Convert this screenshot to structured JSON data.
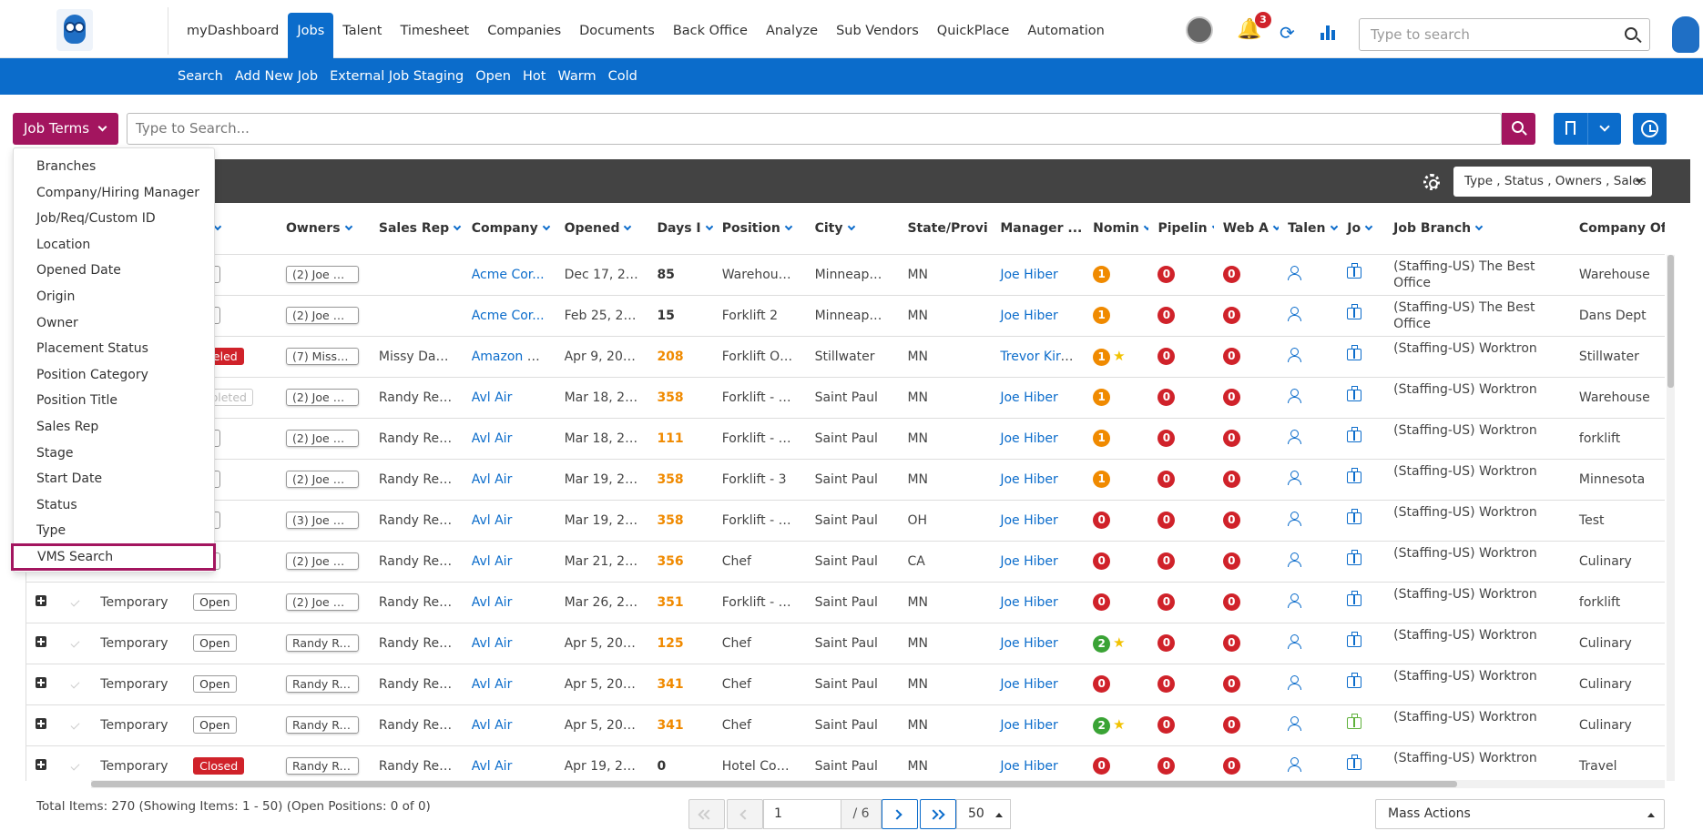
{
  "nav": {
    "items": [
      "myDashboard",
      "Jobs",
      "Talent",
      "Timesheet",
      "Companies",
      "Documents",
      "Back Office",
      "Analyze",
      "Sub Vendors",
      "QuickPlace",
      "Automation"
    ],
    "active_index": 1,
    "notifications_count": "3",
    "search_placeholder": "Type to search"
  },
  "subnav": {
    "items": [
      "Search",
      "Add New Job",
      "External Job Staging",
      "Open",
      "Hot",
      "Warm",
      "Cold"
    ]
  },
  "searchbar": {
    "terms_label": "Job Terms",
    "placeholder": "Type to Search..."
  },
  "dropdown": {
    "items": [
      "Branches",
      "Company/Hiring Manager",
      "Job/Req/Custom ID",
      "Location",
      "Opened Date",
      "Origin",
      "Owner",
      "Placement Status",
      "Position Category",
      "Position Title",
      "Sales Rep",
      "Stage",
      "Start Date",
      "Status",
      "Type"
    ],
    "highlighted": "VMS Search"
  },
  "toolbar": {
    "filter_label": "Type , Status , Owners , Sales"
  },
  "table": {
    "headers": [
      "",
      "",
      "",
      "us",
      "Owners",
      "Sales Rep",
      "Company",
      "Opened",
      "Days I",
      "Position",
      "City",
      "State/Provi",
      "Manager ...",
      "Nomin",
      "Pipelin",
      "Web A",
      "Talen",
      "Jo",
      "Job Branch",
      "Company Office"
    ],
    "rows": [
      {
        "type": "",
        "status": "en",
        "status_style": "",
        "owner": "(2) Joe Hi...",
        "sales": "",
        "company": "Acme Cor...",
        "opened": "Dec 17, 2024",
        "days": "85",
        "days_style": "",
        "position": "Warehous...",
        "city": "Minneapolis",
        "state": "MN",
        "manager": "Joe Hiber",
        "nom": "1",
        "nom_color": "orange",
        "nom_star": false,
        "pipe": "0",
        "web": "0",
        "job_icon": "blue",
        "branch": "(Staffing-US) The Best Office",
        "office": "Warehouse"
      },
      {
        "type": "",
        "status": "en",
        "status_style": "",
        "owner": "(2) Joe Hi...",
        "sales": "",
        "company": "Acme Cor...",
        "opened": "Feb 25, 2025",
        "days": "15",
        "days_style": "",
        "position": "Forklift 2",
        "city": "Minneapolis",
        "state": "MN",
        "manager": "Joe Hiber",
        "nom": "1",
        "nom_color": "orange",
        "nom_star": false,
        "pipe": "0",
        "web": "0",
        "job_icon": "blue",
        "branch": "(Staffing-US) The Best Office",
        "office": "Dans Dept"
      },
      {
        "type": "",
        "status": "nceled",
        "status_style": "red",
        "owner": "(7) Missy ...",
        "sales": "Missy Dah...",
        "company": "Amazon W...",
        "opened": "Apr 9, 2024",
        "days": "208",
        "days_style": "orange",
        "position": "Forklift Ope...",
        "city": "Stillwater",
        "state": "MN",
        "manager": "Trevor Kirc...",
        "nom": "1",
        "nom_color": "orange",
        "nom_star": true,
        "pipe": "0",
        "web": "0",
        "job_icon": "blue",
        "branch": "(Staffing-US) Worktron",
        "office": "Stillwater"
      },
      {
        "type": "",
        "status": "mpleted",
        "status_style": "grey",
        "owner": "(2) Joe Hi...",
        "sales": "Randy Rec...",
        "company": "Avl Air",
        "opened": "Mar 18, 2024",
        "days": "358",
        "days_style": "orange",
        "position": "Forklift - 1st...",
        "city": "Saint Paul",
        "state": "MN",
        "manager": "Joe Hiber",
        "nom": "1",
        "nom_color": "orange",
        "nom_star": false,
        "pipe": "0",
        "web": "0",
        "job_icon": "blue",
        "branch": "(Staffing-US) Worktron",
        "office": "Warehouse"
      },
      {
        "type": "",
        "status": "en",
        "status_style": "",
        "owner": "(2) Joe Hi...",
        "sales": "Randy Rec...",
        "company": "Avl Air",
        "opened": "Mar 18, 2024",
        "days": "111",
        "days_style": "orange",
        "position": "Forklift - 1st...",
        "city": "Saint Paul",
        "state": "MN",
        "manager": "Joe Hiber",
        "nom": "1",
        "nom_color": "orange",
        "nom_star": false,
        "pipe": "0",
        "web": "0",
        "job_icon": "blue",
        "branch": "(Staffing-US) Worktron",
        "office": "forklift"
      },
      {
        "type": "",
        "status": "en",
        "status_style": "",
        "owner": "(2) Joe Hi...",
        "sales": "Randy Rec...",
        "company": "Avl Air",
        "opened": "Mar 19, 2024",
        "days": "358",
        "days_style": "orange",
        "position": "Forklift - 3",
        "city": "Saint Paul",
        "state": "MN",
        "manager": "Joe Hiber",
        "nom": "1",
        "nom_color": "orange",
        "nom_star": false,
        "pipe": "0",
        "web": "0",
        "job_icon": "blue",
        "branch": "(Staffing-US) Worktron",
        "office": "Minnesota"
      },
      {
        "type": "",
        "status": "en",
        "status_style": "",
        "owner": "(3) Joe Hi...",
        "sales": "Randy Rec...",
        "company": "Avl Air",
        "opened": "Mar 19, 2024",
        "days": "358",
        "days_style": "orange",
        "position": "Forklift - 1st...",
        "city": "Saint Paul",
        "state": "OH",
        "manager": "Joe Hiber",
        "nom": "0",
        "nom_color": "red",
        "nom_star": false,
        "pipe": "0",
        "web": "0",
        "job_icon": "blue",
        "branch": "(Staffing-US) Worktron",
        "office": "Test"
      },
      {
        "type": "",
        "status": "en",
        "status_style": "",
        "owner": "(2) Joe Hi...",
        "sales": "Randy Rec...",
        "company": "Avl Air",
        "opened": "Mar 21, 2024",
        "days": "356",
        "days_style": "orange",
        "position": "Chef",
        "city": "Saint Paul",
        "state": "CA",
        "manager": "Joe Hiber",
        "nom": "0",
        "nom_color": "red",
        "nom_star": false,
        "pipe": "0",
        "web": "0",
        "job_icon": "blue",
        "branch": "(Staffing-US) Worktron",
        "office": "Culinary"
      },
      {
        "type": "Temporary",
        "status": "Open",
        "status_style": "",
        "owner": "(2) Joe Hi...",
        "sales": "Randy Rec...",
        "company": "Avl Air",
        "opened": "Mar 26, 20...",
        "days": "351",
        "days_style": "orange",
        "position": "Forklift - 1st...",
        "city": "Saint Paul",
        "state": "MN",
        "manager": "Joe Hiber",
        "nom": "0",
        "nom_color": "red",
        "nom_star": false,
        "pipe": "0",
        "web": "0",
        "job_icon": "blue",
        "branch": "(Staffing-US) Worktron",
        "office": "forklift"
      },
      {
        "type": "Temporary",
        "status": "Open",
        "status_style": "",
        "owner": "Randy Re...",
        "sales": "Randy Rec...",
        "company": "Avl Air",
        "opened": "Apr 5, 2024",
        "days": "125",
        "days_style": "orange",
        "position": "Chef",
        "city": "Saint Paul",
        "state": "MN",
        "manager": "Joe Hiber",
        "nom": "2",
        "nom_color": "green",
        "nom_star": true,
        "pipe": "0",
        "web": "0",
        "job_icon": "blue",
        "branch": "(Staffing-US) Worktron",
        "office": "Culinary"
      },
      {
        "type": "Temporary",
        "status": "Open",
        "status_style": "",
        "owner": "Randy Re...",
        "sales": "Randy Rec...",
        "company": "Avl Air",
        "opened": "Apr 5, 2024",
        "days": "341",
        "days_style": "orange",
        "position": "Chef",
        "city": "Saint Paul",
        "state": "MN",
        "manager": "Joe Hiber",
        "nom": "0",
        "nom_color": "red",
        "nom_star": false,
        "pipe": "0",
        "web": "0",
        "job_icon": "blue",
        "branch": "(Staffing-US) Worktron",
        "office": "Culinary"
      },
      {
        "type": "Temporary",
        "status": "Open",
        "status_style": "",
        "owner": "Randy Re...",
        "sales": "Randy Rec...",
        "company": "Avl Air",
        "opened": "Apr 5, 2024",
        "days": "341",
        "days_style": "orange",
        "position": "Chef",
        "city": "Saint Paul",
        "state": "MN",
        "manager": "Joe Hiber",
        "nom": "2",
        "nom_color": "green",
        "nom_star": true,
        "pipe": "0",
        "web": "0",
        "job_icon": "green",
        "branch": "(Staffing-US) Worktron",
        "office": "Culinary"
      },
      {
        "type": "Temporary",
        "status": "Closed",
        "status_style": "red",
        "owner": "Randy Re...",
        "sales": "Randy Rec...",
        "company": "Avl Air",
        "opened": "Apr 19, 2024",
        "days": "0",
        "days_style": "",
        "position": "Hotel Conc...",
        "city": "Saint Paul",
        "state": "MN",
        "manager": "Joe Hiber",
        "nom": "0",
        "nom_color": "red",
        "nom_star": false,
        "pipe": "0",
        "web": "0",
        "job_icon": "blue",
        "branch": "(Staffing-US) Worktron",
        "office": "Travel"
      }
    ]
  },
  "footer": {
    "total": "Total Items: 270 (Showing Items: 1 - 50) (Open Positions: 0 of 0)",
    "page": "1",
    "page_of": "/ 6",
    "page_size": "50",
    "mass_actions": "Mass Actions"
  },
  "colors": {
    "brand_blue": "#0b6ccb",
    "accent_magenta": "#a3155f",
    "dark_bar": "#434343"
  }
}
